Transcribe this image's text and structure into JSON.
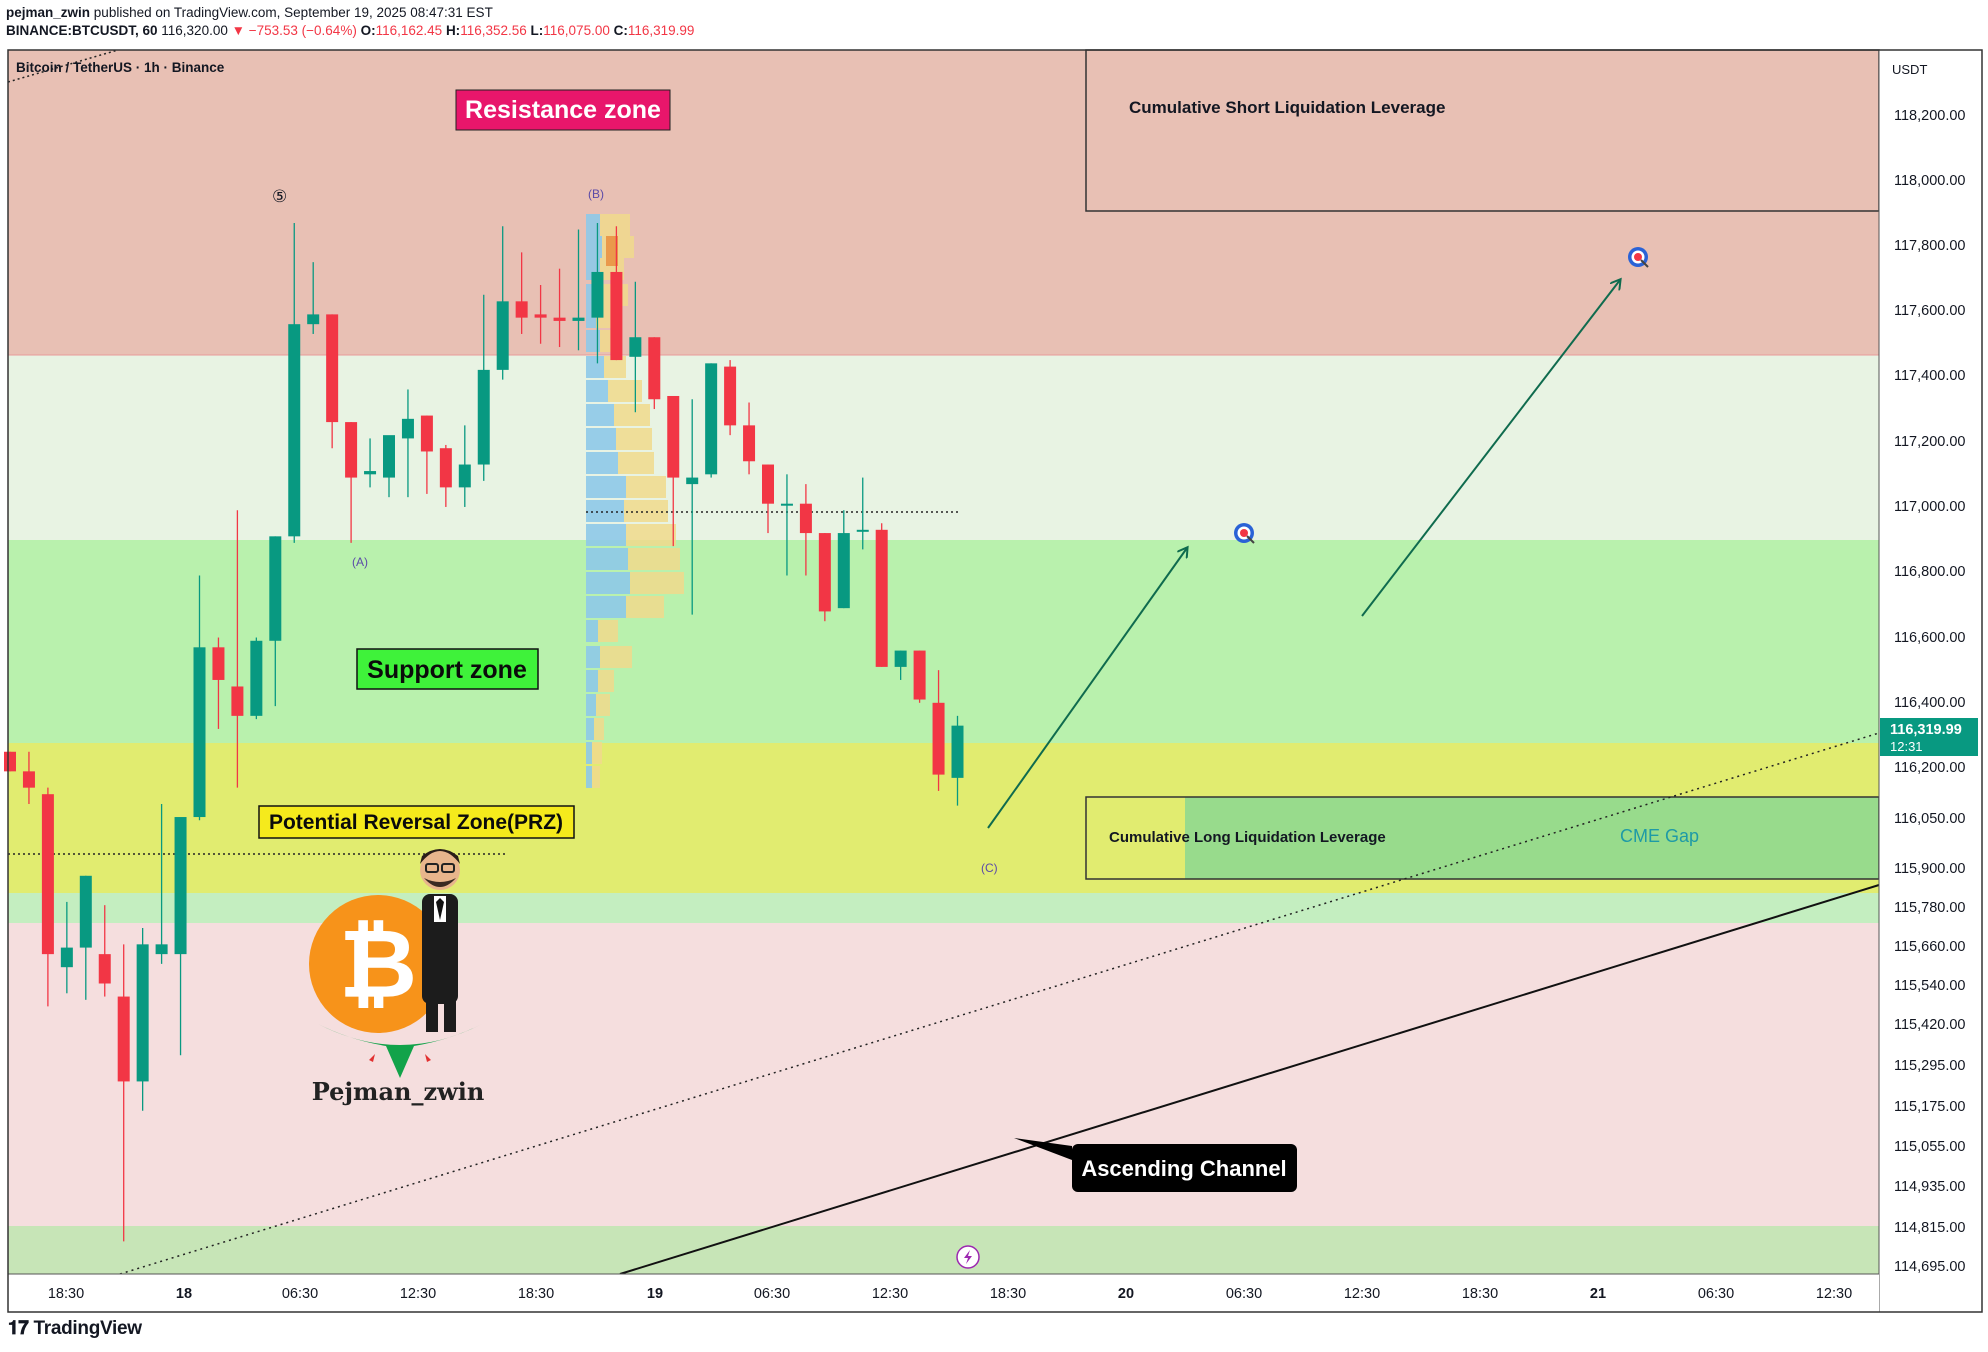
{
  "header": {
    "published_by": "pejman_zwin",
    "published_text": "published on TradingView.com, September 19, 2025 08:47:31 EST",
    "symbol": "BINANCE:BTCUSDT, 60",
    "last": "116,320.00",
    "change": "▼ −753.53 (−0.64%)",
    "o_label": "O:",
    "o": "116,162.45",
    "h_label": "H:",
    "h": "116,352.56",
    "l_label": "L:",
    "l": "116,075.00",
    "c_label": "C:",
    "c": "116,319.99"
  },
  "legend": "Bitcoin / TetherUS · 1h · Binance",
  "price_axis": {
    "currency": "USDT",
    "ticks": [
      "118,200.00",
      "118,000.00",
      "117,800.00",
      "117,600.00",
      "117,400.00",
      "117,200.00",
      "117,000.00",
      "116,800.00",
      "116,600.00",
      "116,400.00",
      "116,200.00",
      "116,050.00",
      "115,900.00",
      "115,780.00",
      "115,660.00",
      "115,540.00",
      "115,420.00",
      "115,295.00",
      "115,175.00",
      "115,055.00",
      "114,935.00",
      "114,815.00",
      "114,695.00"
    ],
    "current_price": "116,319.99",
    "countdown": "12:31"
  },
  "time_axis": {
    "ticks": [
      "18:30",
      "18",
      "06:30",
      "12:30",
      "18:30",
      "19",
      "06:30",
      "12:30",
      "18:30",
      "20",
      "06:30",
      "12:30",
      "18:30",
      "21",
      "06:30",
      "12:30"
    ]
  },
  "annotations": {
    "resistance": "Resistance zone",
    "support": "Support zone",
    "prz": "Potential Reversal Zone(PRZ)",
    "short_liq": "Cumulative Short Liquidation Leverage",
    "long_liq": "Cumulative Long Liquidation Leverage",
    "cme_gap": "CME Gap",
    "channel": "Ascending Channel",
    "wave5": "⑤",
    "waveA": "(A)",
    "waveB": "(B)",
    "waveC": "(C)",
    "author": "Pejman_zwin"
  },
  "colors": {
    "up": "#089981",
    "down": "#f23645",
    "resistance_zone": "#e8c0b4",
    "support_zone": "#b9f1ad",
    "prz_zone": "#e1ec70",
    "neutral_zone": "#e8f3e3",
    "lower_zone": "#f5dede",
    "arrow": "#0f6b4e"
  },
  "chart_data": {
    "type": "candlestick",
    "timeframe": "1h",
    "ylim": [
      114640,
      118390
    ],
    "candles": [
      {
        "o": 116240,
        "h": 116240,
        "l": 116180,
        "c": 116180
      },
      {
        "o": 116180,
        "h": 116240,
        "l": 116080,
        "c": 116130
      },
      {
        "o": 116110,
        "h": 116130,
        "l": 115460,
        "c": 115620
      },
      {
        "o": 115580,
        "h": 115780,
        "l": 115500,
        "c": 115640
      },
      {
        "o": 115640,
        "h": 115860,
        "l": 115480,
        "c": 115860
      },
      {
        "o": 115620,
        "h": 115770,
        "l": 115490,
        "c": 115530
      },
      {
        "o": 115490,
        "h": 115650,
        "l": 114740,
        "c": 115230
      },
      {
        "o": 115230,
        "h": 115700,
        "l": 115140,
        "c": 115650
      },
      {
        "o": 115620,
        "h": 116080,
        "l": 115590,
        "c": 115650
      },
      {
        "o": 115620,
        "h": 116030,
        "l": 115310,
        "c": 116040
      },
      {
        "o": 116040,
        "h": 116780,
        "l": 116030,
        "c": 116560
      },
      {
        "o": 116560,
        "h": 116590,
        "l": 116310,
        "c": 116460
      },
      {
        "o": 116440,
        "h": 116980,
        "l": 116130,
        "c": 116350
      },
      {
        "o": 116350,
        "h": 116590,
        "l": 116340,
        "c": 116580
      },
      {
        "o": 116580,
        "h": 116900,
        "l": 116380,
        "c": 116900
      },
      {
        "o": 116900,
        "h": 117860,
        "l": 116880,
        "c": 117550
      },
      {
        "o": 117550,
        "h": 117740,
        "l": 117520,
        "c": 117580
      },
      {
        "o": 117580,
        "h": 117580,
        "l": 117170,
        "c": 117250
      },
      {
        "o": 117250,
        "h": 117250,
        "l": 116880,
        "c": 117080
      },
      {
        "o": 117090,
        "h": 117200,
        "l": 117050,
        "c": 117100
      },
      {
        "o": 117080,
        "h": 117200,
        "l": 117020,
        "c": 117210
      },
      {
        "o": 117200,
        "h": 117350,
        "l": 117020,
        "c": 117260
      },
      {
        "o": 117270,
        "h": 117270,
        "l": 117030,
        "c": 117160
      },
      {
        "o": 117170,
        "h": 117180,
        "l": 116990,
        "c": 117050
      },
      {
        "o": 117050,
        "h": 117240,
        "l": 116990,
        "c": 117120
      },
      {
        "o": 117120,
        "h": 117640,
        "l": 117070,
        "c": 117410
      },
      {
        "o": 117410,
        "h": 117850,
        "l": 117380,
        "c": 117620
      },
      {
        "o": 117620,
        "h": 117770,
        "l": 117520,
        "c": 117570
      },
      {
        "o": 117580,
        "h": 117670,
        "l": 117490,
        "c": 117570
      },
      {
        "o": 117570,
        "h": 117720,
        "l": 117480,
        "c": 117560
      },
      {
        "o": 117560,
        "h": 117840,
        "l": 117470,
        "c": 117570
      },
      {
        "o": 117570,
        "h": 117860,
        "l": 117430,
        "c": 117710
      },
      {
        "o": 117710,
        "h": 117850,
        "l": 117440,
        "c": 117440
      },
      {
        "o": 117450,
        "h": 117680,
        "l": 117280,
        "c": 117510
      },
      {
        "o": 117510,
        "h": 117510,
        "l": 117290,
        "c": 117320
      },
      {
        "o": 117330,
        "h": 117330,
        "l": 116870,
        "c": 117080
      },
      {
        "o": 117060,
        "h": 117320,
        "l": 116660,
        "c": 117080
      },
      {
        "o": 117090,
        "h": 117430,
        "l": 117080,
        "c": 117430
      },
      {
        "o": 117420,
        "h": 117440,
        "l": 117210,
        "c": 117240
      },
      {
        "o": 117240,
        "h": 117310,
        "l": 117090,
        "c": 117130
      },
      {
        "o": 117120,
        "h": 117120,
        "l": 116910,
        "c": 117000
      },
      {
        "o": 117000,
        "h": 117090,
        "l": 116780,
        "c": 117000
      },
      {
        "o": 117000,
        "h": 117060,
        "l": 116780,
        "c": 116910
      },
      {
        "o": 116910,
        "h": 116910,
        "l": 116640,
        "c": 116670
      },
      {
        "o": 116680,
        "h": 116980,
        "l": 116680,
        "c": 116910
      },
      {
        "o": 116920,
        "h": 117080,
        "l": 116860,
        "c": 116920
      },
      {
        "o": 116920,
        "h": 116940,
        "l": 116500,
        "c": 116500
      },
      {
        "o": 116500,
        "h": 116550,
        "l": 116460,
        "c": 116550
      },
      {
        "o": 116550,
        "h": 116550,
        "l": 116390,
        "c": 116400
      },
      {
        "o": 116390,
        "h": 116490,
        "l": 116120,
        "c": 116170
      },
      {
        "o": 116160,
        "h": 116350,
        "l": 116075,
        "c": 116320
      }
    ],
    "levels": {
      "resistance_zone": [
        117470,
        118390
      ],
      "support_zone": [
        116290,
        116910
      ],
      "prz": [
        115800,
        116290
      ],
      "prz_line": 115940,
      "poc_line": 116990,
      "lower_green_band": [
        115750,
        115800
      ],
      "bottom_green_band": [
        114640,
        114790
      ]
    },
    "targets": [
      116920,
      117830
    ]
  }
}
